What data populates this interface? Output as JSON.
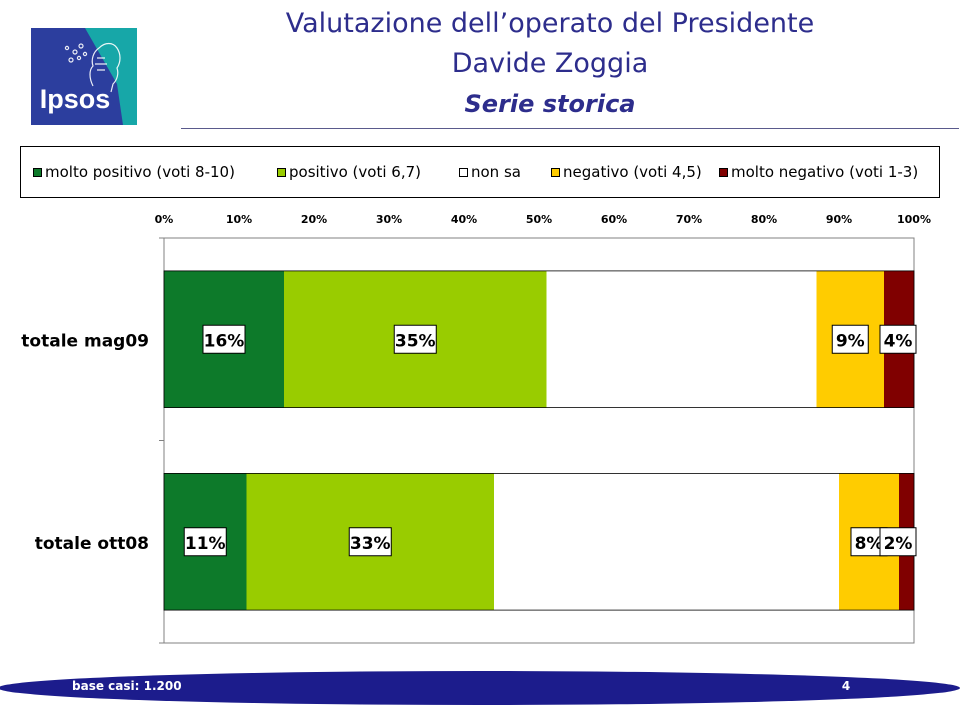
{
  "header": {
    "title_line1": "Valutazione dell’operato del Presidente",
    "title_line2": "Davide Zoggia",
    "subtitle": "Serie storica"
  },
  "logo": {
    "text": "Ipsos",
    "colors": [
      "#2c3e9e",
      "#17a7a8"
    ]
  },
  "footer": {
    "base_note": "base casi: 1.200",
    "page_number": "4"
  },
  "chart_data": {
    "type": "bar",
    "orientation": "horizontal",
    "stacked": "percent",
    "categories": [
      "totale mag09",
      "totale ott08"
    ],
    "series": [
      {
        "name": "molto positivo (voti 8-10)",
        "color": "#0d7a2a",
        "values": [
          16,
          11
        ],
        "labels": [
          "16%",
          "11%"
        ]
      },
      {
        "name": "positivo (voti 6,7)",
        "color": "#99cc00",
        "values": [
          35,
          33
        ],
        "labels": [
          "35%",
          "33%"
        ]
      },
      {
        "name": "non sa",
        "color": "#ffffff",
        "values": [
          36,
          46
        ],
        "labels": [
          "",
          ""
        ]
      },
      {
        "name": "negativo (voti 4,5)",
        "color": "#ffcc00",
        "values": [
          9,
          8
        ],
        "labels": [
          "9%",
          "8%"
        ]
      },
      {
        "name": "molto negativo (voti 1-3)",
        "color": "#800000",
        "values": [
          4,
          2
        ],
        "labels": [
          "4%",
          "2%"
        ]
      }
    ],
    "xlim": [
      0,
      100
    ],
    "xticks": [
      "0%",
      "10%",
      "20%",
      "30%",
      "40%",
      "50%",
      "60%",
      "70%",
      "80%",
      "90%",
      "100%"
    ],
    "axis_position": "top",
    "legend": "top",
    "grid": false
  }
}
